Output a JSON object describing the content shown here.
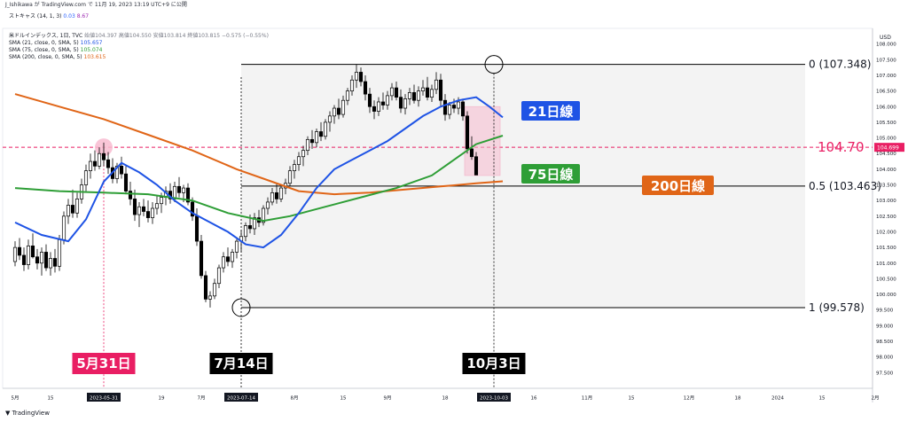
{
  "header": {
    "caption": "J_Ishikawa が TradingView.com で 11月 19, 2023 13:19 UTC+9 に公開",
    "stoch_name": "ストキャス (14, 1, 3)",
    "stoch_k": "0.03",
    "stoch_d": "8.67",
    "symbol": "米ドルインデックス, 1日, TVC",
    "ohlc": "始値104.397 高値104.550 安値103.814 終値103.815 −0.575 (−0.55%)",
    "sma21_label": "SMA (21, close, 0, SMA, 5)",
    "sma21_value": "105.657",
    "sma75_label": "SMA (75, close, 0, SMA, 5)",
    "sma75_value": "105.074",
    "sma200_label": "SMA (200, close, 0, SMA, 5)",
    "sma200_value": "103.615"
  },
  "footer": {
    "logo_text": "TradingView"
  },
  "colors": {
    "sma21": "#1e53e5",
    "sma75": "#2e9e36",
    "sma200": "#e06517",
    "highlight": "#e91e63",
    "candle": "#000000"
  },
  "chart_data": {
    "type": "candlestick",
    "currency": "USD",
    "y_axis": {
      "min": 97.0,
      "max": 108.5,
      "ticks": [
        "97.500",
        "98.000",
        "98.500",
        "99.000",
        "99.500",
        "100.000",
        "100.500",
        "101.000",
        "101.500",
        "102.000",
        "102.500",
        "103.000",
        "103.500",
        "104.000",
        "104.500",
        "105.000",
        "105.500",
        "106.000",
        "106.500",
        "107.000",
        "107.500",
        "108.000"
      ]
    },
    "x_axis": {
      "ticks": [
        {
          "label": "5月",
          "i": 0
        },
        {
          "label": "15",
          "i": 8
        },
        {
          "label": "2023-05-31",
          "i": 20,
          "highlight": true
        },
        {
          "label": "19",
          "i": 33
        },
        {
          "label": "7月",
          "i": 42
        },
        {
          "label": "2023-07-14",
          "i": 51,
          "highlight": true
        },
        {
          "label": "8月",
          "i": 63
        },
        {
          "label": "15",
          "i": 74
        },
        {
          "label": "9月",
          "i": 84
        },
        {
          "label": "18",
          "i": 97
        },
        {
          "label": "2023-10-03",
          "i": 108,
          "highlight": true
        },
        {
          "label": "16",
          "i": 117
        },
        {
          "label": "11月",
          "i": 129
        },
        {
          "label": "15",
          "i": 139
        },
        {
          "label": "12月",
          "i": 152
        },
        {
          "label": "18",
          "i": 163
        },
        {
          "label": "2024",
          "i": 172
        },
        {
          "label": "15",
          "i": 182
        },
        {
          "label": "2月",
          "i": 194
        }
      ]
    },
    "candles": [
      [
        101.05,
        101.7,
        100.9,
        101.5
      ],
      [
        101.5,
        101.8,
        101.1,
        101.25
      ],
      [
        101.25,
        101.5,
        100.75,
        100.95
      ],
      [
        100.95,
        101.75,
        100.8,
        101.55
      ],
      [
        101.55,
        101.95,
        101.15,
        101.2
      ],
      [
        101.2,
        101.45,
        100.8,
        101.0
      ],
      [
        101.0,
        101.5,
        100.6,
        101.35
      ],
      [
        101.35,
        101.6,
        100.75,
        100.85
      ],
      [
        100.85,
        101.35,
        100.6,
        101.15
      ],
      [
        101.15,
        101.45,
        100.7,
        100.9
      ],
      [
        100.9,
        101.9,
        100.75,
        101.75
      ],
      [
        101.75,
        102.65,
        101.6,
        102.5
      ],
      [
        102.5,
        103.05,
        102.25,
        102.85
      ],
      [
        102.85,
        103.35,
        102.45,
        102.6
      ],
      [
        102.6,
        103.25,
        102.45,
        103.05
      ],
      [
        103.05,
        103.7,
        102.9,
        103.5
      ],
      [
        103.5,
        104.15,
        103.3,
        103.95
      ],
      [
        103.95,
        104.5,
        103.7,
        104.25
      ],
      [
        104.25,
        104.6,
        103.95,
        104.1
      ],
      [
        104.1,
        104.7,
        104.0,
        104.5
      ],
      [
        104.5,
        104.85,
        104.1,
        104.3
      ],
      [
        104.3,
        104.55,
        103.85,
        104.05
      ],
      [
        104.05,
        104.35,
        103.55,
        103.7
      ],
      [
        103.7,
        104.2,
        103.55,
        104.1
      ],
      [
        104.1,
        104.4,
        103.7,
        103.85
      ],
      [
        103.85,
        104.1,
        103.2,
        103.3
      ],
      [
        103.3,
        103.6,
        102.85,
        103.05
      ],
      [
        103.05,
        103.35,
        102.35,
        102.55
      ],
      [
        102.55,
        102.95,
        102.15,
        102.8
      ],
      [
        102.8,
        103.05,
        102.5,
        102.65
      ],
      [
        102.65,
        103.0,
        102.3,
        102.45
      ],
      [
        102.45,
        102.95,
        102.25,
        102.75
      ],
      [
        102.75,
        103.15,
        102.55,
        102.9
      ],
      [
        102.9,
        103.25,
        102.6,
        103.1
      ],
      [
        103.1,
        103.45,
        102.85,
        103.3
      ],
      [
        103.3,
        103.55,
        102.9,
        103.05
      ],
      [
        103.05,
        103.6,
        102.95,
        103.45
      ],
      [
        103.45,
        103.75,
        103.1,
        103.25
      ],
      [
        103.25,
        103.5,
        102.95,
        103.4
      ],
      [
        103.4,
        103.55,
        102.85,
        102.95
      ],
      [
        102.95,
        103.1,
        102.35,
        102.5
      ],
      [
        102.5,
        102.75,
        101.55,
        101.7
      ],
      [
        101.7,
        101.9,
        100.5,
        100.6
      ],
      [
        100.6,
        100.75,
        99.75,
        99.85
      ],
      [
        99.85,
        100.1,
        99.58,
        99.95
      ],
      [
        99.95,
        100.5,
        99.85,
        100.35
      ],
      [
        100.35,
        100.95,
        100.2,
        100.85
      ],
      [
        100.85,
        101.35,
        100.7,
        101.2
      ],
      [
        101.2,
        101.5,
        100.9,
        101.05
      ],
      [
        101.05,
        101.45,
        100.85,
        101.35
      ],
      [
        101.35,
        101.8,
        101.15,
        101.7
      ],
      [
        101.7,
        102.05,
        101.35,
        101.85
      ],
      [
        101.85,
        102.3,
        101.7,
        102.2
      ],
      [
        102.2,
        102.55,
        101.95,
        102.1
      ],
      [
        102.1,
        102.6,
        101.9,
        102.45
      ],
      [
        102.45,
        102.7,
        102.15,
        102.3
      ],
      [
        102.3,
        102.85,
        102.2,
        102.75
      ],
      [
        102.75,
        103.1,
        102.55,
        102.95
      ],
      [
        102.95,
        103.4,
        102.85,
        103.25
      ],
      [
        103.25,
        103.55,
        102.9,
        103.05
      ],
      [
        103.05,
        103.5,
        102.95,
        103.4
      ],
      [
        103.4,
        103.7,
        103.2,
        103.55
      ],
      [
        103.55,
        104.1,
        103.45,
        103.95
      ],
      [
        103.95,
        104.3,
        103.7,
        104.15
      ],
      [
        104.15,
        104.55,
        103.95,
        104.4
      ],
      [
        104.4,
        104.75,
        104.1,
        104.6
      ],
      [
        104.6,
        105.05,
        104.45,
        104.95
      ],
      [
        104.95,
        105.25,
        104.65,
        104.85
      ],
      [
        104.85,
        105.3,
        104.7,
        105.2
      ],
      [
        105.2,
        105.5,
        104.9,
        105.05
      ],
      [
        105.05,
        105.6,
        104.95,
        105.5
      ],
      [
        105.5,
        105.85,
        105.2,
        105.7
      ],
      [
        105.7,
        106.05,
        105.45,
        105.95
      ],
      [
        105.95,
        106.25,
        105.6,
        105.75
      ],
      [
        105.75,
        106.35,
        105.65,
        106.2
      ],
      [
        106.2,
        106.6,
        106.05,
        106.5
      ],
      [
        106.5,
        107.0,
        106.35,
        106.85
      ],
      [
        106.85,
        107.35,
        106.6,
        107.1
      ],
      [
        107.1,
        107.25,
        106.65,
        106.8
      ],
      [
        106.8,
        107.0,
        106.2,
        106.4
      ],
      [
        106.4,
        106.6,
        105.8,
        106.0
      ],
      [
        106.0,
        106.2,
        105.6,
        105.85
      ],
      [
        105.85,
        106.3,
        105.7,
        106.15
      ],
      [
        106.15,
        106.45,
        105.9,
        106.05
      ],
      [
        106.05,
        106.5,
        105.9,
        106.35
      ],
      [
        106.35,
        106.75,
        106.2,
        106.6
      ],
      [
        106.6,
        106.8,
        106.2,
        106.3
      ],
      [
        106.3,
        106.55,
        105.8,
        105.95
      ],
      [
        105.95,
        106.4,
        105.75,
        106.25
      ],
      [
        106.25,
        106.6,
        106.05,
        106.45
      ],
      [
        106.45,
        106.7,
        106.1,
        106.2
      ],
      [
        106.2,
        106.65,
        106.0,
        106.5
      ],
      [
        106.5,
        106.85,
        106.35,
        106.6
      ],
      [
        106.6,
        106.95,
        106.2,
        106.3
      ],
      [
        106.3,
        106.7,
        106.15,
        106.55
      ],
      [
        106.55,
        107.1,
        106.4,
        106.85
      ],
      [
        106.85,
        107.05,
        106.0,
        106.2
      ],
      [
        106.2,
        106.4,
        105.55,
        105.75
      ],
      [
        105.75,
        106.15,
        105.6,
        106.05
      ],
      [
        106.05,
        106.25,
        105.8,
        105.95
      ],
      [
        105.95,
        106.3,
        105.75,
        106.15
      ],
      [
        106.15,
        106.25,
        105.55,
        105.7
      ],
      [
        105.7,
        105.85,
        104.5,
        104.65
      ],
      [
        104.65,
        105.05,
        104.3,
        104.4
      ],
      [
        104.4,
        104.55,
        103.814,
        103.815
      ]
    ],
    "candle_start_index": 0,
    "sma21": [
      [
        0,
        102.3
      ],
      [
        6,
        101.9
      ],
      [
        12,
        101.7
      ],
      [
        16,
        102.4
      ],
      [
        20,
        103.6
      ],
      [
        24,
        104.2
      ],
      [
        28,
        103.9
      ],
      [
        32,
        103.5
      ],
      [
        36,
        103.0
      ],
      [
        40,
        102.6
      ],
      [
        44,
        102.3
      ],
      [
        48,
        102.0
      ],
      [
        52,
        101.6
      ],
      [
        56,
        101.5
      ],
      [
        60,
        101.9
      ],
      [
        64,
        102.6
      ],
      [
        68,
        103.4
      ],
      [
        72,
        104.0
      ],
      [
        76,
        104.3
      ],
      [
        80,
        104.6
      ],
      [
        84,
        104.9
      ],
      [
        88,
        105.3
      ],
      [
        92,
        105.7
      ],
      [
        96,
        106.0
      ],
      [
        100,
        106.2
      ],
      [
        104,
        106.3
      ],
      [
        107,
        106.0
      ],
      [
        110,
        105.657
      ]
    ],
    "sma75": [
      [
        0,
        103.4
      ],
      [
        10,
        103.3
      ],
      [
        20,
        103.25
      ],
      [
        30,
        103.2
      ],
      [
        40,
        103.0
      ],
      [
        48,
        102.6
      ],
      [
        56,
        102.35
      ],
      [
        62,
        102.5
      ],
      [
        70,
        102.8
      ],
      [
        78,
        103.1
      ],
      [
        86,
        103.4
      ],
      [
        94,
        103.8
      ],
      [
        100,
        104.4
      ],
      [
        104,
        104.8
      ],
      [
        110,
        105.074
      ]
    ],
    "sma200": [
      [
        0,
        106.4
      ],
      [
        10,
        106.0
      ],
      [
        20,
        105.6
      ],
      [
        30,
        105.1
      ],
      [
        40,
        104.6
      ],
      [
        50,
        104.0
      ],
      [
        58,
        103.6
      ],
      [
        64,
        103.3
      ],
      [
        72,
        103.2
      ],
      [
        80,
        103.25
      ],
      [
        88,
        103.35
      ],
      [
        96,
        103.45
      ],
      [
        104,
        103.55
      ],
      [
        110,
        103.615
      ]
    ],
    "fib": [
      {
        "ratio": "0",
        "price": 107.348,
        "label": "0 (107.348)"
      },
      {
        "ratio": "0.5",
        "price": 103.463,
        "label": "0.5 (103.463)"
      },
      {
        "ratio": "1",
        "price": 99.578,
        "label": "1 (99.578)"
      }
    ],
    "pivot_marks": [
      {
        "date_label": "5月31日",
        "price": 104.7,
        "i": 20
      },
      {
        "date_label": "7月14日",
        "price": 99.578,
        "i": 51
      },
      {
        "date_label": "10月3日",
        "price": 107.348,
        "i": 108
      }
    ],
    "hline": {
      "price": 104.7,
      "label": "104.70"
    },
    "last_price_label": "104.699",
    "ma_labels": [
      {
        "text": "21日線",
        "series": "sma21"
      },
      {
        "text": "75日線",
        "series": "sma75"
      },
      {
        "text": "200日線",
        "series": "sma200"
      }
    ]
  }
}
